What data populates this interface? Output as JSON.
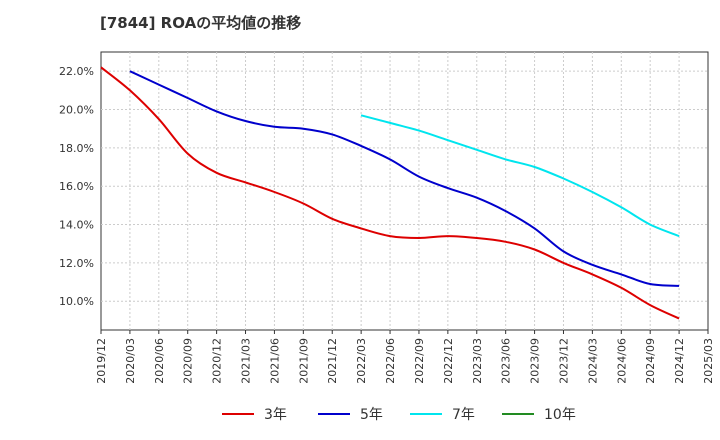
{
  "title": "[7844]  ROAの平均値の推移",
  "chart_data": {
    "type": "line",
    "x": [
      "2019/12",
      "2020/03",
      "2020/06",
      "2020/09",
      "2020/12",
      "2021/03",
      "2021/06",
      "2021/09",
      "2021/12",
      "2022/03",
      "2022/06",
      "2022/09",
      "2022/12",
      "2023/03",
      "2023/06",
      "2023/09",
      "2023/12",
      "2024/03",
      "2024/06",
      "2024/09",
      "2024/12",
      "2025/03"
    ],
    "ylim": [
      8.5,
      23.0
    ],
    "yticks": [
      10.0,
      12.0,
      14.0,
      16.0,
      18.0,
      20.0,
      22.0
    ],
    "ytick_labels": [
      "10.0%",
      "12.0%",
      "14.0%",
      "16.0%",
      "18.0%",
      "20.0%",
      "22.0%"
    ],
    "grid": true,
    "legend_position": "bottom",
    "series": [
      {
        "name": "3年",
        "color": "#dd0000",
        "values": [
          22.2,
          21.0,
          19.5,
          17.7,
          16.7,
          16.2,
          15.7,
          15.1,
          14.3,
          13.8,
          13.4,
          13.3,
          13.4,
          13.3,
          13.1,
          12.7,
          12.0,
          11.4,
          10.7,
          9.8,
          9.1,
          null
        ]
      },
      {
        "name": "5年",
        "color": "#0000cc",
        "values": [
          null,
          22.0,
          21.3,
          20.6,
          19.9,
          19.4,
          19.1,
          19.0,
          18.7,
          18.1,
          17.4,
          16.5,
          15.9,
          15.4,
          14.7,
          13.8,
          12.6,
          11.9,
          11.4,
          10.9,
          10.8,
          null
        ]
      },
      {
        "name": "7年",
        "color": "#00e5ee",
        "values": [
          null,
          null,
          null,
          null,
          null,
          null,
          null,
          null,
          null,
          19.7,
          19.3,
          18.9,
          18.4,
          17.9,
          17.4,
          17.0,
          16.4,
          15.7,
          14.9,
          14.0,
          13.4,
          null
        ]
      },
      {
        "name": "10年",
        "color": "#228b22",
        "values": [
          null,
          null,
          null,
          null,
          null,
          null,
          null,
          null,
          null,
          null,
          null,
          null,
          null,
          null,
          null,
          null,
          null,
          null,
          null,
          null,
          null,
          null
        ]
      }
    ]
  }
}
